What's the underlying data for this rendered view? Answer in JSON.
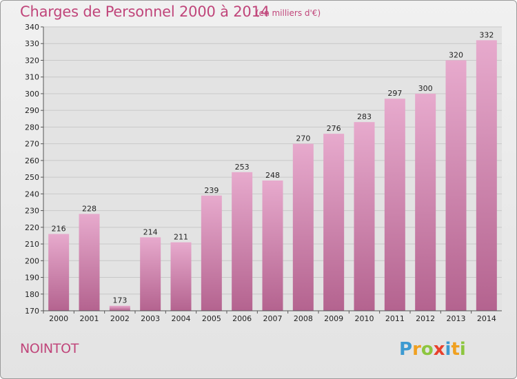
{
  "header": {
    "title": "Charges de Personnel 2000 à 2014",
    "subtitle": "(en milliers d'€)"
  },
  "footer": {
    "place": "NOINTOT",
    "logo_text": "Proxiti"
  },
  "colors": {
    "accent": "#c0457a",
    "bar_top": "#e7aacd",
    "bar_bottom": "#b4638f"
  },
  "chart_data": {
    "type": "bar",
    "categories": [
      "2000",
      "2001",
      "2002",
      "2003",
      "2004",
      "2005",
      "2006",
      "2007",
      "2008",
      "2009",
      "2010",
      "2011",
      "2012",
      "2013",
      "2014"
    ],
    "values": [
      216,
      228,
      173,
      214,
      211,
      239,
      253,
      248,
      270,
      276,
      283,
      297,
      300,
      320,
      332
    ],
    "title": "Charges de Personnel 2000 à 2014",
    "subtitle": "(en milliers d'€)",
    "ylim": [
      170,
      340
    ],
    "yticks": [
      170,
      180,
      190,
      200,
      210,
      220,
      230,
      240,
      250,
      260,
      270,
      280,
      290,
      300,
      310,
      320,
      330,
      340
    ],
    "grid": true
  }
}
